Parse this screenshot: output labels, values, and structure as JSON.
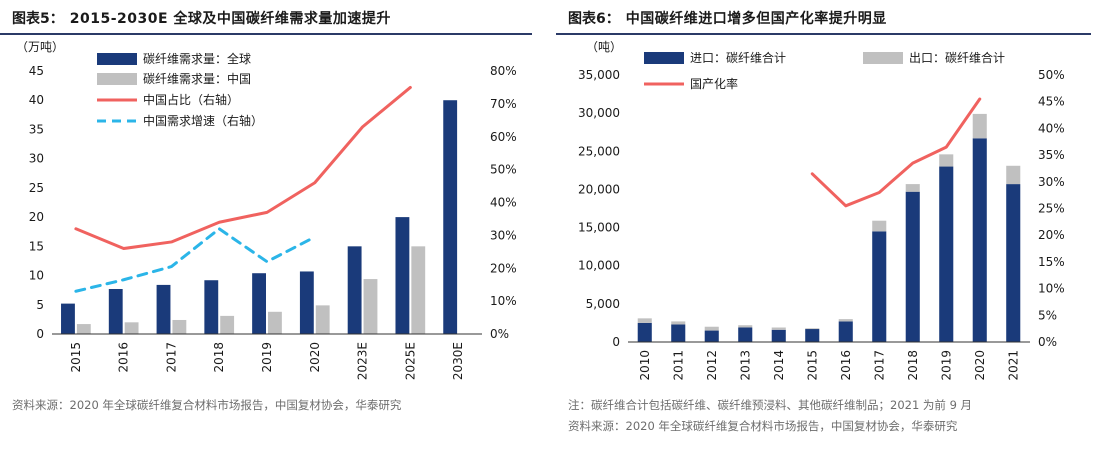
{
  "left": {
    "fig_label": "图表5：",
    "title": "2015-2030E 全球及中国碳纤维需求量加速提升",
    "source": "资料来源：2020 年全球碳纤维复合材料市场报告，中国复材协会，华泰研究"
  },
  "right": {
    "fig_label": "图表6：",
    "title": "中国碳纤维进口增多但国产化率提升明显",
    "note": "注：碳纤维合计包括碳纤维、碳纤维预浸料、其他碳纤维制品；2021 为前 9 月",
    "source": "资料来源：2020 年全球碳纤维复合材料市场报告，中国复材协会，华泰研究"
  },
  "colors": {
    "navy": "#1a3a7a",
    "gray": "#c0c0c0",
    "red": "#f0625f",
    "blue": "#2bb5e8",
    "title_rule": "#2b3a67"
  },
  "chart_data": [
    {
      "type": "bar",
      "unit_label": "（万吨）",
      "categories": [
        "2015",
        "2016",
        "2017",
        "2018",
        "2019",
        "2020",
        "2023E",
        "2025E",
        "2030E"
      ],
      "ylim": [
        0,
        45
      ],
      "yticks": [
        "0",
        "5",
        "10",
        "15",
        "20",
        "25",
        "30",
        "35",
        "40",
        "45"
      ],
      "y2lim": [
        0,
        80
      ],
      "y2ticks": [
        "0%",
        "10%",
        "20%",
        "30%",
        "40%",
        "50%",
        "60%",
        "70%",
        "80%"
      ],
      "legend_position": "top-left",
      "series": [
        {
          "name": "碳纤维需求量：全球",
          "kind": "bar",
          "axis": "left",
          "color": "#1a3a7a",
          "values": [
            5.2,
            7.7,
            8.4,
            9.2,
            10.4,
            10.7,
            15.0,
            20.0,
            40.0
          ]
        },
        {
          "name": "碳纤维需求量：中国",
          "kind": "bar",
          "axis": "left",
          "color": "#c0c0c0",
          "values": [
            1.7,
            2.0,
            2.4,
            3.1,
            3.8,
            4.9,
            9.4,
            15.0,
            null
          ]
        },
        {
          "name": "中国占比（右轴）",
          "kind": "line",
          "axis": "right",
          "color": "#f0625f",
          "dash": false,
          "values": [
            32.0,
            26.0,
            28.0,
            34.0,
            37.0,
            46.0,
            63.0,
            75.0,
            null
          ]
        },
        {
          "name": "中国需求增速（右轴）",
          "kind": "line",
          "axis": "right",
          "color": "#2bb5e8",
          "dash": true,
          "values": [
            13.0,
            16.5,
            20.5,
            32.0,
            22.0,
            29.5,
            null,
            null,
            null
          ]
        }
      ]
    },
    {
      "type": "bar",
      "unit_label": "（吨）",
      "categories": [
        "2010",
        "2011",
        "2012",
        "2013",
        "2014",
        "2015",
        "2016",
        "2017",
        "2018",
        "2019",
        "2020",
        "2021"
      ],
      "ylim": [
        0,
        35000
      ],
      "yticks": [
        "0",
        "5,000",
        "10,000",
        "15,000",
        "20,000",
        "25,000",
        "30,000",
        "35,000"
      ],
      "y2lim": [
        0,
        50
      ],
      "y2ticks": [
        "0%",
        "5%",
        "10%",
        "15%",
        "20%",
        "25%",
        "30%",
        "35%",
        "40%",
        "45%",
        "50%"
      ],
      "stacked": true,
      "legend_position": "top",
      "series": [
        {
          "name": "进口：碳纤维合计",
          "kind": "bar",
          "axis": "left",
          "color": "#1a3a7a",
          "values": [
            2500,
            2300,
            1500,
            1900,
            1600,
            1700,
            2700,
            14500,
            19700,
            23000,
            26700,
            20700
          ]
        },
        {
          "name": "出口：碳纤维合计",
          "kind": "bar",
          "axis": "left",
          "color": "#c0c0c0",
          "values": [
            600,
            400,
            500,
            300,
            300,
            100,
            300,
            1400,
            1000,
            1600,
            3200,
            2400
          ]
        },
        {
          "name": "国产化率",
          "kind": "line",
          "axis": "right",
          "color": "#f0625f",
          "dash": false,
          "values": [
            null,
            null,
            null,
            null,
            null,
            31.5,
            25.5,
            28.0,
            33.5,
            36.5,
            45.5,
            null
          ]
        }
      ]
    }
  ]
}
